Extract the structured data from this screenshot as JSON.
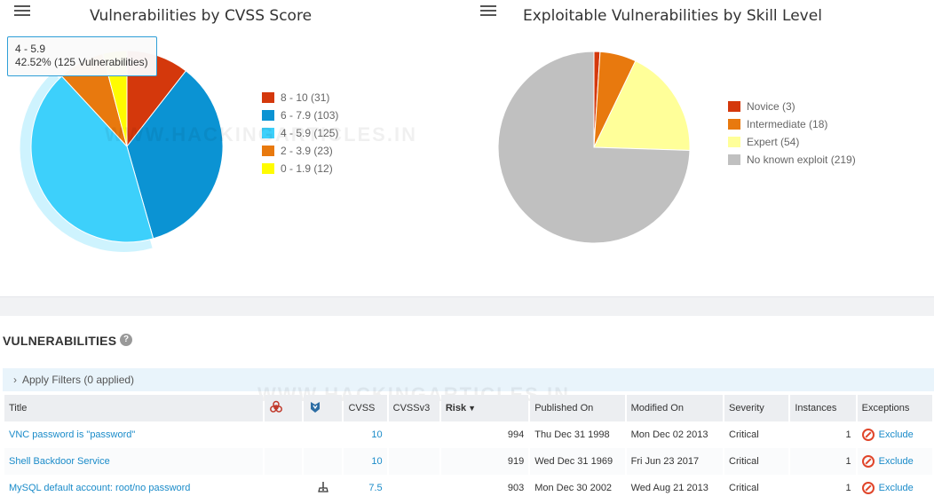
{
  "charts": {
    "cvss": {
      "title": "Vulnerabilities by CVSS Score",
      "chart_data": {
        "type": "pie",
        "title": "Vulnerabilities by CVSS Score",
        "slices": [
          {
            "label": "8 - 10 (31)",
            "name": "8 - 10",
            "value": 31,
            "color": "#d4380c"
          },
          {
            "label": "6 - 7.9 (103)",
            "name": "6 - 7.9",
            "value": 103,
            "color": "#0b93d3"
          },
          {
            "label": "4 - 5.9 (125)",
            "name": "4 - 5.9",
            "value": 125,
            "color": "#3dd0fb"
          },
          {
            "label": "2 - 3.9 (23)",
            "name": "2 - 3.9",
            "value": 23,
            "color": "#e8790e"
          },
          {
            "label": "0 - 1.9 (12)",
            "name": "0 - 1.9",
            "value": 12,
            "color": "#fffc00"
          }
        ],
        "highlighted": "4 - 5.9"
      },
      "tooltip": {
        "line1": "4 - 5.9",
        "line2": "42.52% (125 Vulnerabilities)"
      }
    },
    "skill": {
      "title": "Exploitable Vulnerabilities by Skill Level",
      "chart_data": {
        "type": "pie",
        "title": "Exploitable Vulnerabilities by Skill Level",
        "slices": [
          {
            "label": "Novice (3)",
            "name": "Novice",
            "value": 3,
            "color": "#d4380c"
          },
          {
            "label": "Intermediate (18)",
            "name": "Intermediate",
            "value": 18,
            "color": "#e8790e"
          },
          {
            "label": "Expert (54)",
            "name": "Expert",
            "value": 54,
            "color": "#ffff99"
          },
          {
            "label": "No known exploit (219)",
            "name": "No known exploit",
            "value": 219,
            "color": "#c0c0c0"
          }
        ]
      }
    },
    "watermark": "WWW.HACKINGARTICLES.IN"
  },
  "section": {
    "title": "VULNERABILITIES",
    "help": "?",
    "filters": "Apply Filters (0 applied)"
  },
  "table": {
    "headers": {
      "title": "Title",
      "cvss": "CVSS",
      "cvssv3": "CVSSv3",
      "risk": "Risk",
      "published": "Published On",
      "modified": "Modified On",
      "severity": "Severity",
      "instances": "Instances",
      "exceptions": "Exceptions"
    },
    "header_icons": {
      "malware": "biohazard-icon",
      "exploit": "metasploit-icon"
    },
    "rows": [
      {
        "title": "VNC password is \"password\"",
        "cvss": "10",
        "cvssv3": "",
        "risk": "994",
        "published": "Thu Dec 31 1998",
        "modified": "Mon Dec 02 2013",
        "severity": "Critical",
        "instances": "1",
        "exception": "Exclude",
        "exploit_icon": false
      },
      {
        "title": "Shell Backdoor Service",
        "cvss": "10",
        "cvssv3": "",
        "risk": "919",
        "published": "Wed Dec 31 1969",
        "modified": "Fri Jun 23 2017",
        "severity": "Critical",
        "instances": "1",
        "exception": "Exclude",
        "exploit_icon": false
      },
      {
        "title": "MySQL default account: root/no password",
        "cvss": "7.5",
        "cvssv3": "",
        "risk": "903",
        "published": "Mon Dec 30 2002",
        "modified": "Wed Aug 21 2013",
        "severity": "Critical",
        "instances": "1",
        "exception": "Exclude",
        "exploit_icon": true
      }
    ]
  }
}
